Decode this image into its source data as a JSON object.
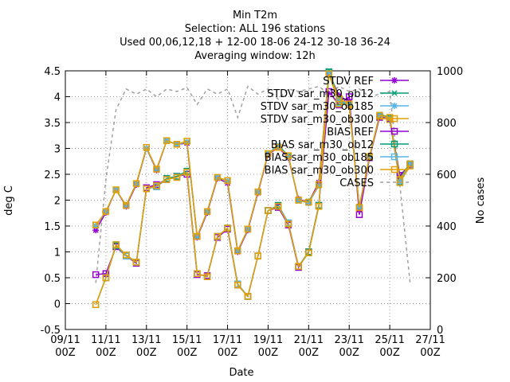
{
  "chart_data": {
    "type": "line",
    "title": [
      "Min T2m",
      "Selection: ALL     196 stations",
      "Used 00,06,12,18 + 12-00 18-06 24-12 30-18 36-24",
      "Averaging window: 12h"
    ],
    "xlabel": "Date",
    "ylabel": "deg C",
    "y2label": "No cases",
    "xlim": [
      0,
      18
    ],
    "ylim": [
      -0.5,
      4.5
    ],
    "y2lim": [
      0,
      1000
    ],
    "xtick_values": [
      0,
      2,
      4,
      6,
      8,
      10,
      12,
      14,
      16,
      18
    ],
    "xtick_labels": [
      [
        "09/11",
        "00Z"
      ],
      [
        "11/11",
        "00Z"
      ],
      [
        "13/11",
        "00Z"
      ],
      [
        "15/11",
        "00Z"
      ],
      [
        "17/11",
        "00Z"
      ],
      [
        "19/11",
        "00Z"
      ],
      [
        "21/11",
        "00Z"
      ],
      [
        "23/11",
        "00Z"
      ],
      [
        "25/11",
        "00Z"
      ],
      [
        "27/11",
        "00Z"
      ]
    ],
    "ytick_values": [
      -0.5,
      0,
      0.5,
      1,
      1.5,
      2,
      2.5,
      3,
      3.5,
      4,
      4.5
    ],
    "ytick_labels": [
      "-0.5",
      "0",
      "0.5",
      "1",
      "1.5",
      "2",
      "2.5",
      "3",
      "3.5",
      "4",
      "4.5"
    ],
    "y2tick_values": [
      0,
      200,
      400,
      600,
      800,
      1000
    ],
    "y2tick_labels": [
      "0",
      "200",
      "400",
      "600",
      "800",
      "1000"
    ],
    "legend_position": "top-right",
    "x": [
      1.5,
      2.0,
      2.5,
      3.0,
      3.5,
      4.0,
      4.5,
      5.0,
      5.5,
      6.0,
      6.5,
      7.0,
      7.5,
      8.0,
      8.5,
      9.0,
      9.5,
      10.0,
      10.5,
      11.0,
      11.5,
      12.0,
      12.5,
      13.0,
      13.5,
      14.0,
      14.5,
      15.0,
      15.5,
      16.0,
      16.5,
      17.0
    ],
    "series": [
      {
        "name": "STDV REF",
        "color": "#9400d3",
        "marker": "star",
        "axis": "y",
        "dash": false,
        "values": [
          1.42,
          1.76,
          2.2,
          1.88,
          2.3,
          3.0,
          2.58,
          3.15,
          3.08,
          3.1,
          1.28,
          1.76,
          2.42,
          2.33,
          1.0,
          1.42,
          2.14,
          2.88,
          3.02,
          2.82,
          2.02,
          1.96,
          2.34,
          4.45,
          4.02,
          3.9,
          1.82,
          2.82,
          3.62,
          3.56,
          2.44,
          2.68
        ]
      },
      {
        "name": "STDV sar_m30_ob12",
        "color": "#009e73",
        "marker": "cross",
        "axis": "y",
        "dash": false,
        "values": [
          1.5,
          1.78,
          2.2,
          1.9,
          2.32,
          3.0,
          2.6,
          3.15,
          3.08,
          3.12,
          1.3,
          1.78,
          2.44,
          2.37,
          1.02,
          1.44,
          2.16,
          2.9,
          3.06,
          2.86,
          1.98,
          1.98,
          2.28,
          4.5,
          3.96,
          3.86,
          1.88,
          2.84,
          3.66,
          3.6,
          2.42,
          2.72
        ]
      },
      {
        "name": "STDV sar_m30_ob185",
        "color": "#56b4e9",
        "marker": "star",
        "axis": "y",
        "dash": false,
        "values": [
          1.5,
          1.78,
          2.2,
          1.9,
          2.32,
          3.0,
          2.6,
          3.15,
          3.08,
          3.12,
          1.3,
          1.78,
          2.44,
          2.37,
          1.02,
          1.44,
          2.16,
          2.9,
          3.04,
          2.84,
          2.0,
          1.94,
          2.28,
          4.46,
          3.94,
          3.84,
          1.86,
          2.84,
          3.64,
          3.58,
          2.36,
          2.7
        ]
      },
      {
        "name": "STDV sar_m30_ob300",
        "color": "#e69f00",
        "marker": "square",
        "axis": "y",
        "dash": false,
        "values": [
          1.52,
          1.78,
          2.2,
          1.9,
          2.32,
          3.02,
          2.6,
          3.15,
          3.08,
          3.14,
          1.3,
          1.78,
          2.44,
          2.38,
          1.02,
          1.44,
          2.16,
          2.9,
          3.02,
          2.86,
          2.0,
          1.96,
          2.3,
          4.44,
          3.96,
          3.86,
          1.86,
          2.84,
          3.64,
          3.6,
          2.4,
          2.7
        ]
      },
      {
        "name": "BIAS REF",
        "color": "#9400d3",
        "marker": "square",
        "axis": "y",
        "dash": false,
        "values": [
          0.56,
          0.58,
          1.1,
          0.92,
          0.78,
          2.24,
          2.3,
          2.4,
          2.46,
          2.5,
          0.56,
          0.54,
          1.28,
          1.44,
          0.36,
          0.14,
          0.92,
          1.8,
          1.86,
          1.52,
          0.7,
          1.0,
          1.9,
          4.1,
          3.84,
          4.0,
          1.72,
          2.82,
          3.6,
          3.58,
          2.48,
          2.68
        ]
      },
      {
        "name": "BIAS sar_m30_ob12",
        "color": "#009e73",
        "marker": "square",
        "axis": "y",
        "dash": false,
        "values": [
          -0.02,
          0.5,
          1.12,
          0.92,
          0.8,
          2.22,
          2.26,
          2.42,
          2.46,
          2.56,
          0.58,
          0.52,
          1.3,
          1.46,
          0.38,
          0.14,
          0.92,
          1.8,
          1.9,
          1.56,
          0.72,
          1.0,
          1.9,
          4.48,
          3.9,
          3.86,
          1.86,
          2.84,
          3.62,
          3.58,
          2.36,
          2.7
        ]
      },
      {
        "name": "BIAS sar_m30_ob185",
        "color": "#56b4e9",
        "marker": "square",
        "axis": "y",
        "dash": false,
        "values": [
          -0.02,
          0.5,
          1.14,
          0.92,
          0.8,
          2.22,
          2.26,
          2.4,
          2.44,
          2.54,
          0.58,
          0.52,
          1.3,
          1.46,
          0.38,
          0.14,
          0.92,
          1.8,
          1.88,
          1.56,
          0.72,
          0.98,
          1.88,
          4.44,
          3.88,
          3.84,
          1.84,
          2.84,
          3.62,
          3.56,
          2.34,
          2.68
        ]
      },
      {
        "name": "BIAS sar_m30_ob300",
        "color": "#e69f00",
        "marker": "square",
        "axis": "y",
        "dash": false,
        "values": [
          -0.02,
          0.5,
          1.14,
          0.94,
          0.8,
          2.22,
          2.28,
          2.4,
          2.44,
          2.54,
          0.58,
          0.52,
          1.3,
          1.46,
          0.36,
          0.14,
          0.92,
          1.8,
          1.88,
          1.54,
          0.72,
          0.98,
          1.88,
          4.44,
          3.86,
          3.84,
          1.84,
          2.84,
          3.62,
          3.56,
          2.34,
          2.66
        ]
      },
      {
        "name": "CASES",
        "color": "#a0a0a0",
        "marker": "none",
        "axis": "y2",
        "dash": true,
        "values": [
          180,
          580,
          850,
          930,
          910,
          930,
          900,
          930,
          920,
          935,
          870,
          930,
          910,
          930,
          820,
          940,
          910,
          930,
          890,
          930,
          920,
          930,
          940,
          910,
          940,
          920,
          930,
          900,
          910,
          920,
          560,
          180
        ]
      }
    ]
  }
}
